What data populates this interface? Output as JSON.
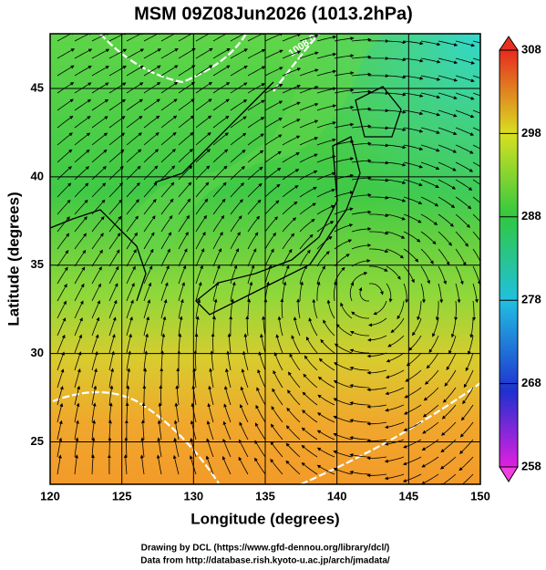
{
  "map": {
    "title": "MSM 09Z08Jun2026 (1013.2hPa)",
    "xlabel": "Longitude (degrees)",
    "ylabel": "Latitude  (degrees)",
    "xlim": [
      120,
      150
    ],
    "ylim": [
      22.6,
      48.1
    ],
    "xticks": [
      120,
      125,
      130,
      135,
      140,
      145,
      150
    ],
    "yticks": [
      25,
      30,
      35,
      40,
      45
    ],
    "contour_label": "1008.0",
    "colorbar": {
      "lim": [
        258,
        308
      ],
      "ticks": [
        258,
        268,
        278,
        288,
        298,
        308
      ]
    },
    "credits": [
      "Drawing by DCL (https://www.gfd-dennou.org/library/dcl/)",
      "Data from http://database.rish.kyoto-u.ac.jp/arch/jmadata/"
    ]
  }
}
